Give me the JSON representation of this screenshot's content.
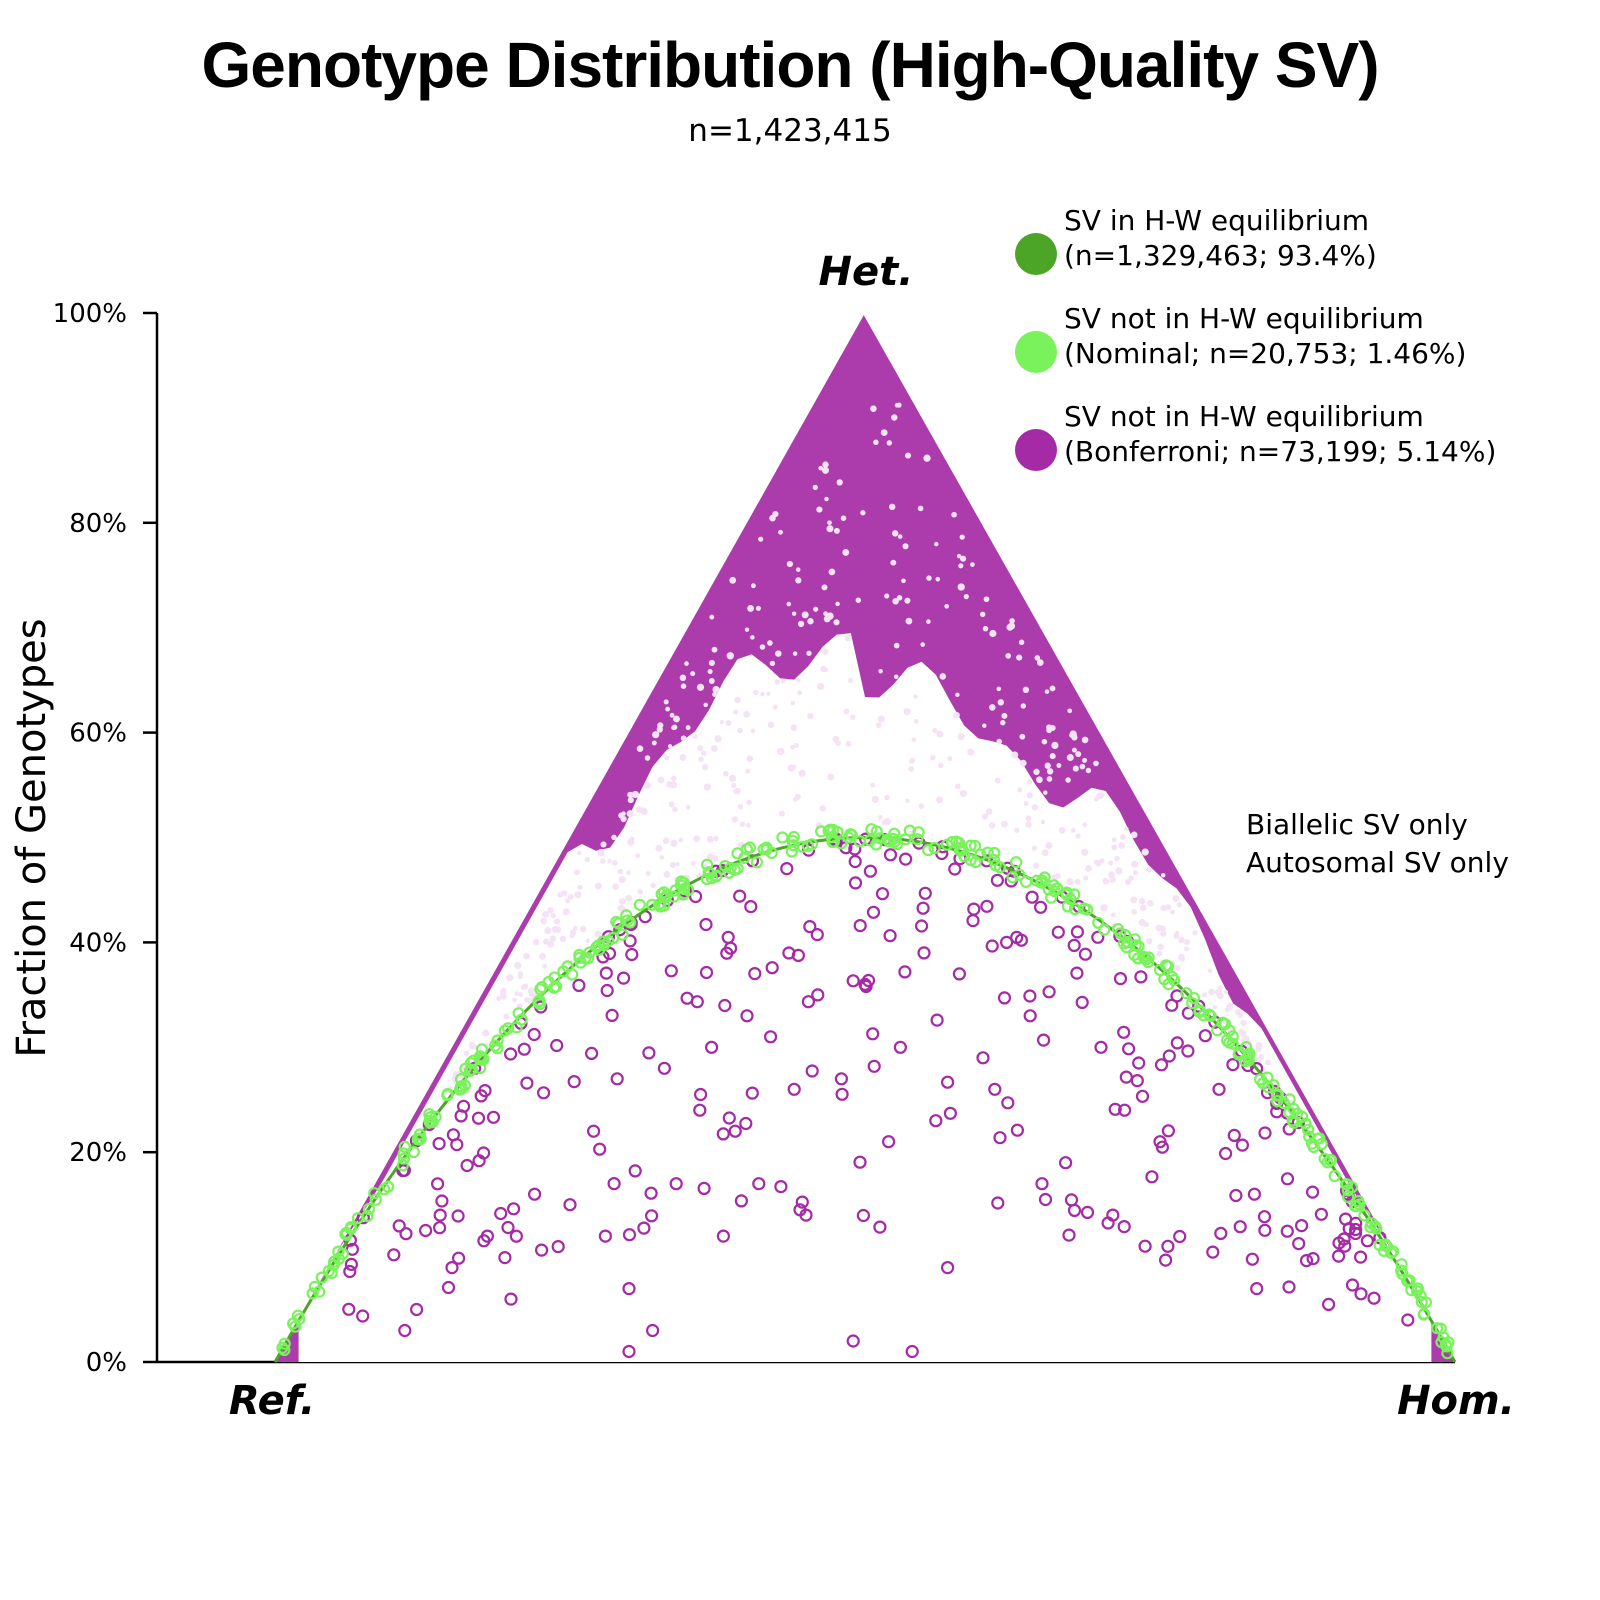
{
  "chart_data": {
    "type": "scatter",
    "subtype": "ternary-de-finetti",
    "title": "Genotype Distribution (High-Quality SV)",
    "subtitle": "n=1,423,415",
    "ylabel": "Fraction of Genotypes",
    "ylim": [
      0,
      100
    ],
    "yticks": [
      "0%",
      "20%",
      "40%",
      "60%",
      "80%",
      "100%"
    ],
    "ytick_values": [
      0,
      20,
      40,
      60,
      80,
      100
    ],
    "vertices": {
      "ref": "Ref.",
      "het": "Het.",
      "hom": "Hom."
    },
    "legend": [
      {
        "line1": "SV in H-W equilibrium",
        "line2": "(n=1,329,463; 93.4%)",
        "color": "#4ca526"
      },
      {
        "line1": "SV not in H-W equilibrium",
        "line2": "(Nominal; n=20,753; 1.46%)",
        "color": "#79f25c"
      },
      {
        "line1": "SV not in H-W equilibrium",
        "line2": "(Bonferroni; n=73,199; 5.14%)",
        "color": "#a52aa5"
      }
    ],
    "notes": [
      "Biallelic SV only",
      "Autosomal SV only"
    ],
    "series": [
      {
        "name": "Bonferroni",
        "color": "#a52aa5",
        "marker": "open-circle",
        "description_x": "allele frequency 0-1",
        "description_y": "heterozygous fraction 0-1",
        "points": [
          [
            0.45,
            0.14
          ],
          [
            0.49,
            0.02
          ],
          [
            0.54,
            0.01
          ],
          [
            0.32,
            0.03
          ],
          [
            0.3,
            0.07
          ],
          [
            0.38,
            0.12
          ],
          [
            0.41,
            0.17
          ],
          [
            0.56,
            0.23
          ],
          [
            0.6,
            0.29
          ],
          [
            0.67,
            0.19
          ],
          [
            0.72,
            0.24
          ],
          [
            0.64,
            0.33
          ],
          [
            0.53,
            0.3
          ],
          [
            0.48,
            0.27
          ],
          [
            0.44,
            0.26
          ],
          [
            0.36,
            0.24
          ],
          [
            0.27,
            0.22
          ],
          [
            0.22,
            0.16
          ],
          [
            0.18,
            0.12
          ],
          [
            0.28,
            0.12
          ],
          [
            0.34,
            0.17
          ],
          [
            0.37,
            0.3
          ],
          [
            0.42,
            0.31
          ],
          [
            0.58,
            0.37
          ],
          [
            0.7,
            0.3
          ],
          [
            0.75,
            0.21
          ],
          [
            0.8,
            0.26
          ],
          [
            0.83,
            0.16
          ],
          [
            0.87,
            0.13
          ],
          [
            0.92,
            0.1
          ],
          [
            0.96,
            0.04
          ],
          [
            0.3,
            0.01
          ],
          [
            0.2,
            0.06
          ],
          [
            0.25,
            0.15
          ],
          [
            0.5,
            0.36
          ],
          [
            0.55,
            0.39
          ],
          [
            0.62,
            0.4
          ],
          [
            0.68,
            0.41
          ],
          [
            0.46,
            0.35
          ],
          [
            0.4,
            0.33
          ],
          [
            0.33,
            0.28
          ],
          [
            0.65,
            0.17
          ],
          [
            0.71,
            0.14
          ],
          [
            0.57,
            0.09
          ],
          [
            0.52,
            0.21
          ],
          [
            0.61,
            0.26
          ],
          [
            0.76,
            0.34
          ],
          [
            0.39,
            0.22
          ],
          [
            0.29,
            0.27
          ],
          [
            0.24,
            0.11
          ],
          [
            0.15,
            0.09
          ],
          [
            0.12,
            0.05
          ],
          [
            0.14,
            0.14
          ],
          [
            0.11,
            0.03
          ]
        ]
      },
      {
        "name": "Nominal",
        "color": "#79f25c",
        "marker": "open-circle",
        "description": "points lying just off the Hardy-Weinberg parabola 2p(1-p)"
      }
    ]
  }
}
